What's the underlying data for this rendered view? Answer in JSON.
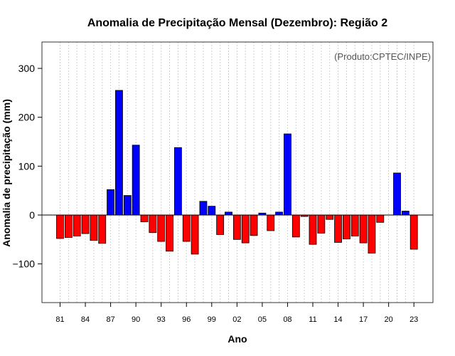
{
  "chart_data": {
    "type": "bar",
    "title": "Anomalia de Precipitação Mensal (Dezembro): Região 2",
    "xlabel": "Ano",
    "ylabel": "Anomalia de precipitação (mm)",
    "annotation": "(Produto:CPTEC/INPE)",
    "ylim": [
      -180,
      355
    ],
    "yticks": [
      -100,
      0,
      100,
      200,
      300
    ],
    "ytick_labels": [
      "−100",
      "0",
      "100",
      "200",
      "300"
    ],
    "xtick_labels": [
      "81",
      "84",
      "87",
      "90",
      "93",
      "96",
      "99",
      "02",
      "05",
      "08",
      "11",
      "14",
      "17",
      "20",
      "23"
    ],
    "xtick_every": 3,
    "grid": true,
    "positive_color": "#0000ff",
    "negative_color": "#ff0000",
    "categories": [
      "1981",
      "1982",
      "1983",
      "1984",
      "1985",
      "1986",
      "1987",
      "1988",
      "1989",
      "1990",
      "1991",
      "1992",
      "1993",
      "1994",
      "1995",
      "1996",
      "1997",
      "1998",
      "1999",
      "2000",
      "2001",
      "2002",
      "2003",
      "2004",
      "2005",
      "2006",
      "2007",
      "2008",
      "2009",
      "2010",
      "2011",
      "2012",
      "2013",
      "2014",
      "2015",
      "2016",
      "2017",
      "2018",
      "2019",
      "2020",
      "2021",
      "2022",
      "2023"
    ],
    "values": [
      -48,
      -46,
      -43,
      -38,
      -52,
      -58,
      52,
      255,
      40,
      143,
      -14,
      -36,
      -54,
      -74,
      138,
      -54,
      -80,
      28,
      18,
      -40,
      6,
      -50,
      -57,
      -42,
      4,
      -32,
      6,
      166,
      -45,
      -3,
      -60,
      -37,
      -9,
      -56,
      -49,
      -43,
      -57,
      -78,
      -15,
      0,
      86,
      8,
      -70
    ]
  }
}
